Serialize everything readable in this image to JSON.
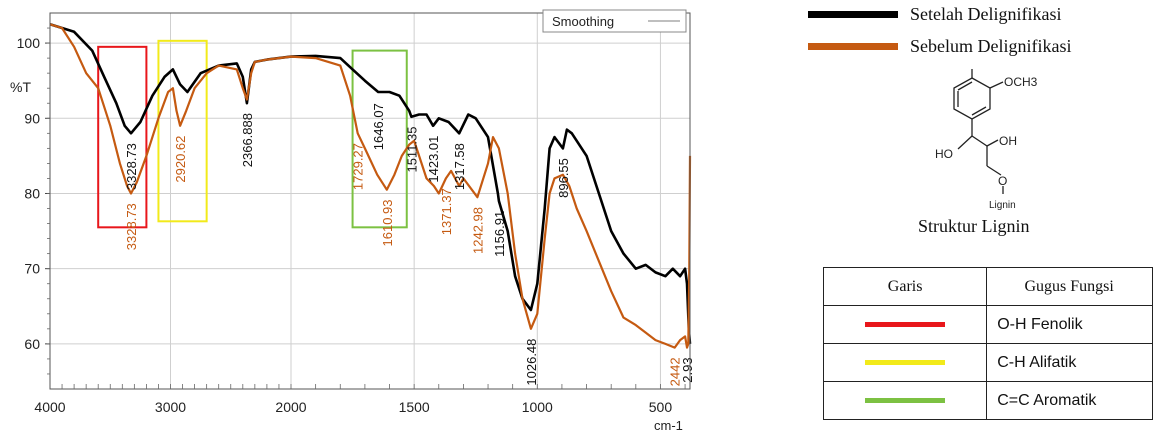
{
  "chart_data": {
    "type": "line",
    "title": "",
    "xlabel": "cm-1",
    "ylabel": "%T",
    "xlim": [
      4000,
      380
    ],
    "ylim": [
      54,
      104
    ],
    "x_ticks": [
      "4000",
      "3000",
      "2000",
      "1500",
      "1000",
      "500"
    ],
    "y_ticks": [
      "100",
      "90",
      "80",
      "70",
      "60"
    ],
    "inset_legend": {
      "label": "Smoothing",
      "color": "#999999"
    },
    "grid": true,
    "series": [
      {
        "name": "Setelah Delignifikasi",
        "color": "#000000",
        "x": [
          4000,
          3800,
          3650,
          3550,
          3450,
          3380,
          3328,
          3250,
          3150,
          3050,
          2980,
          2920,
          2860,
          2750,
          2600,
          2450,
          2400,
          2366,
          2330,
          2300,
          2200,
          2100,
          2000,
          1900,
          1800,
          1750,
          1700,
          1646,
          1600,
          1560,
          1520,
          1511,
          1480,
          1450,
          1423,
          1400,
          1360,
          1317,
          1280,
          1250,
          1200,
          1160,
          1156,
          1120,
          1090,
          1060,
          1026,
          1000,
          970,
          950,
          930,
          896,
          880,
          860,
          800,
          750,
          700,
          650,
          600,
          560,
          520,
          480,
          450,
          420,
          400,
          392,
          385,
          380
        ],
        "y": [
          102.5,
          101.5,
          99.0,
          95.5,
          92.0,
          89.0,
          88.0,
          89.5,
          93.0,
          95.5,
          96.5,
          94.5,
          93.5,
          96.0,
          97.0,
          97.3,
          95.5,
          92.0,
          96.5,
          97.5,
          97.8,
          98.0,
          98.2,
          98.3,
          98.0,
          96.5,
          95.0,
          93.5,
          93.5,
          93.0,
          91.0,
          90.2,
          90.5,
          90.5,
          89.0,
          90.0,
          89.5,
          88.0,
          90.5,
          90.0,
          87.5,
          80.0,
          79.0,
          75.0,
          69.0,
          66.0,
          64.5,
          68.0,
          78.0,
          86.0,
          87.5,
          86.0,
          88.5,
          88.0,
          85.0,
          80.0,
          75.0,
          72.0,
          70.0,
          70.5,
          69.5,
          69.0,
          70.0,
          69.0,
          70.0,
          68.0,
          62.0,
          60.0
        ]
      },
      {
        "name": "Sebelum Delignifikasi",
        "color": "#c55a11",
        "x": [
          4000,
          3900,
          3800,
          3700,
          3600,
          3500,
          3420,
          3360,
          3328,
          3280,
          3200,
          3100,
          3020,
          2980,
          2950,
          2920,
          2870,
          2800,
          2700,
          2600,
          2450,
          2400,
          2366,
          2330,
          2300,
          2200,
          2100,
          2000,
          1900,
          1800,
          1760,
          1729,
          1700,
          1650,
          1611,
          1580,
          1550,
          1520,
          1500,
          1480,
          1450,
          1420,
          1400,
          1371,
          1350,
          1317,
          1300,
          1243,
          1200,
          1180,
          1156,
          1120,
          1090,
          1060,
          1026,
          1000,
          970,
          950,
          930,
          896,
          870,
          840,
          800,
          750,
          700,
          650,
          600,
          560,
          520,
          480,
          442,
          420,
          400,
          392,
          387,
          383,
          380
        ],
        "y": [
          102.5,
          102.0,
          99.5,
          96.0,
          94.0,
          89.0,
          84.0,
          81.0,
          80.0,
          81.5,
          85.0,
          90.0,
          93.5,
          94.0,
          91.0,
          89.0,
          91.0,
          94.0,
          96.0,
          97.0,
          96.5,
          94.0,
          92.5,
          96.0,
          97.5,
          97.8,
          98.0,
          98.2,
          98.0,
          97.0,
          93.0,
          88.0,
          86.0,
          82.5,
          80.5,
          82.5,
          85.0,
          86.5,
          87.0,
          85.0,
          82.0,
          81.0,
          80.0,
          82.0,
          83.0,
          81.0,
          82.0,
          79.5,
          84.0,
          87.5,
          86.0,
          80.0,
          72.0,
          66.0,
          62.0,
          64.0,
          74.0,
          80.0,
          82.0,
          82.5,
          81.0,
          78.0,
          75.0,
          71.0,
          67.0,
          63.5,
          62.5,
          61.5,
          60.5,
          60.0,
          59.5,
          60.5,
          61.0,
          59.5,
          60.0,
          70.0,
          85.0
        ]
      }
    ],
    "peak_labels": [
      {
        "text": "3328.73",
        "x": 3328,
        "y": 87.5,
        "color": "#111111"
      },
      {
        "text": "2366.888",
        "x": 2366,
        "y": 91.5,
        "color": "#111111"
      },
      {
        "text": "1646.07",
        "x": 1646,
        "y": 92.8,
        "color": "#111111"
      },
      {
        "text": "1511.35",
        "x": 1511,
        "y": 89.7,
        "color": "#111111"
      },
      {
        "text": "1423.01",
        "x": 1423,
        "y": 88.5,
        "color": "#111111"
      },
      {
        "text": "1317.58",
        "x": 1317,
        "y": 87.5,
        "color": "#111111"
      },
      {
        "text": "1156.91",
        "x": 1156,
        "y": 78.5,
        "color": "#111111"
      },
      {
        "text": "896.55",
        "x": 896,
        "y": 85.5,
        "color": "#111111"
      },
      {
        "text": "1026.48",
        "x": 1026,
        "y": 61.5,
        "color": "#111111"
      },
      {
        "text": "2.93",
        "x": 392,
        "y": 59.0,
        "color": "#111111"
      },
      {
        "text": "3328.73",
        "x": 3328,
        "y": 79.5,
        "color": "#c55a11"
      },
      {
        "text": "2920.62",
        "x": 2920,
        "y": 88.5,
        "color": "#c55a11"
      },
      {
        "text": "1729.27",
        "x": 1729,
        "y": 87.5,
        "color": "#c55a11"
      },
      {
        "text": "1610.93",
        "x": 1611,
        "y": 80.0,
        "color": "#c55a11"
      },
      {
        "text": "1371.37",
        "x": 1371,
        "y": 81.5,
        "color": "#c55a11"
      },
      {
        "text": "1242.98",
        "x": 1243,
        "y": 79.0,
        "color": "#c55a11"
      },
      {
        "text": "2442",
        "x": 442,
        "y": 59.0,
        "color": "#c55a11"
      }
    ],
    "highlight_boxes": [
      {
        "x_from": 3600,
        "x_to": 3200,
        "y_from": 75.5,
        "y_to": 99.5,
        "color": "#e8161b"
      },
      {
        "x_from": 3100,
        "x_to": 2700,
        "y_from": 76.3,
        "y_to": 100.3,
        "color": "#f2ea1a"
      },
      {
        "x_from": 1750,
        "x_to": 1530,
        "y_from": 75.5,
        "y_to": 99.0,
        "color": "#7cc142"
      }
    ]
  },
  "legend": [
    {
      "label": "Setelah Delignifikasi",
      "color": "#000000"
    },
    {
      "label": "Sebelum Delignifikasi",
      "color": "#c55a11"
    }
  ],
  "structure": {
    "caption": "Struktur Lignin",
    "labels": {
      "methoxy": "OCH3",
      "ho": "HO",
      "oh": "OH",
      "o": "O",
      "lignin": "Lignin"
    }
  },
  "table": {
    "headers": [
      "Garis",
      "Gugus Fungsi"
    ],
    "rows": [
      {
        "line_color": "#e8161b",
        "group": "O-H Fenolik"
      },
      {
        "line_color": "#f2ea1a",
        "group": "C-H Alifatik"
      },
      {
        "line_color": "#7cc142",
        "group": "C=C Aromatik"
      }
    ]
  }
}
